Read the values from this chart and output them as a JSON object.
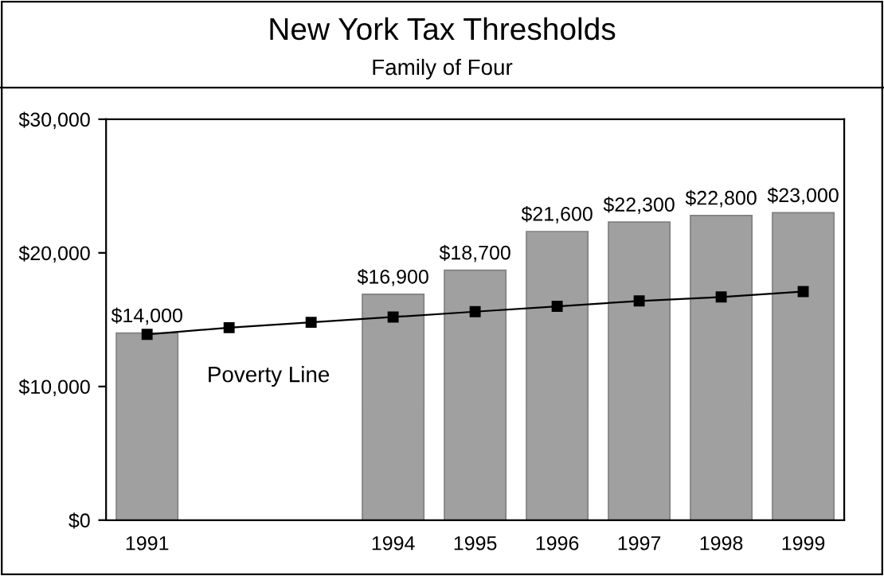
{
  "chart_data": {
    "type": "bar",
    "title": "New York Tax Thresholds",
    "subtitle": "Family of Four",
    "categories": [
      "1991",
      null,
      null,
      "1994",
      "1995",
      "1996",
      "1997",
      "1998",
      "1999"
    ],
    "series": [
      {
        "color": "#a0a0a0",
        "values": [
          14000,
          null,
          null,
          16900,
          18700,
          21600,
          22300,
          22800,
          23000
        ],
        "value_labels": [
          "$14,000",
          null,
          null,
          "$16,900",
          "$18,700",
          "$21,600",
          "$22,300",
          "$22,800",
          "$23,000"
        ]
      },
      {
        "type": "line",
        "name": "Poverty Line",
        "color": "#000000",
        "marker": "square",
        "line_style": "solid",
        "values": [
          13900,
          14400,
          14800,
          15200,
          15600,
          16000,
          16400,
          16700,
          17100
        ]
      }
    ],
    "ylim": [
      0,
      30000
    ],
    "yticks": [
      {
        "value": 0,
        "label": "$0"
      },
      {
        "value": 10000,
        "label": "$10,000"
      },
      {
        "value": 20000,
        "label": "$20,000"
      },
      {
        "value": 30000,
        "label": "$30,000"
      }
    ],
    "grid": false,
    "legend": false
  }
}
